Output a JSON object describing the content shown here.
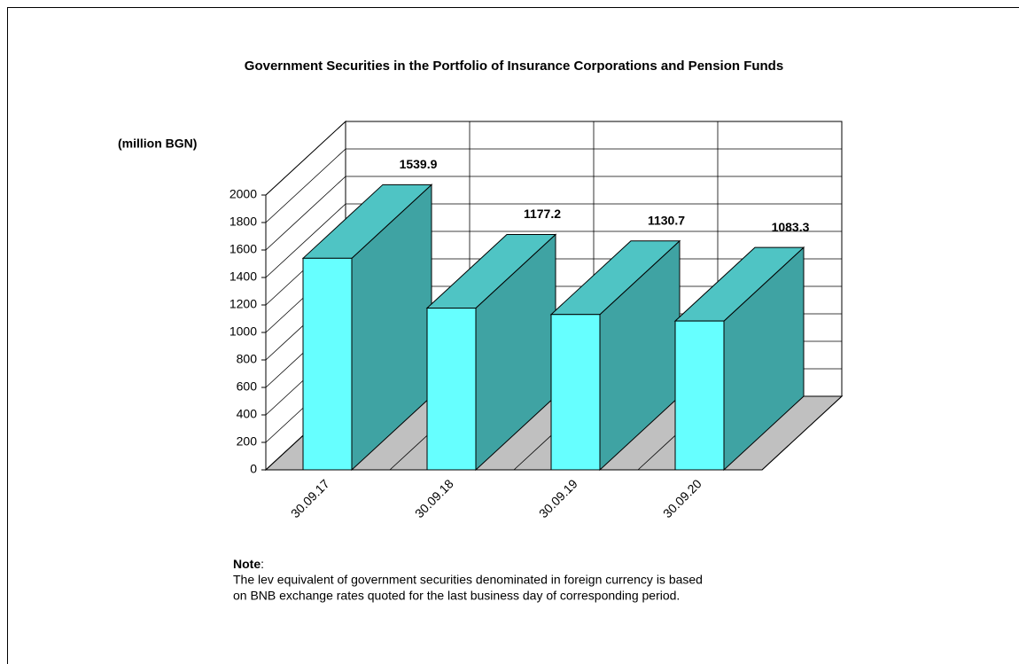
{
  "chart_data": {
    "type": "bar3d",
    "title": "Government Securities in the Portfolio of Insurance Corporations and Pension Funds",
    "y_label": "(million BGN)",
    "categories": [
      "30.09.17",
      "30.09.18",
      "30.09.19",
      "30.09.20"
    ],
    "values": [
      1539.9,
      1177.2,
      1130.7,
      1083.3
    ],
    "ylim": [
      0,
      2000
    ],
    "yticks": [
      0,
      200,
      400,
      600,
      800,
      1000,
      1200,
      1400,
      1600,
      1800,
      2000
    ],
    "grid": true,
    "colors": {
      "front": "#66ffff",
      "side": "#3fa3a3",
      "top": "#4fc4c4",
      "floor": "#c0c0c0"
    }
  },
  "note": {
    "heading": "Note",
    "colon": ":",
    "lines": [
      "The lev equivalent of government securities denominated in foreign currency is based",
      "on BNB exchange rates quoted for the last business day of corresponding period."
    ]
  }
}
